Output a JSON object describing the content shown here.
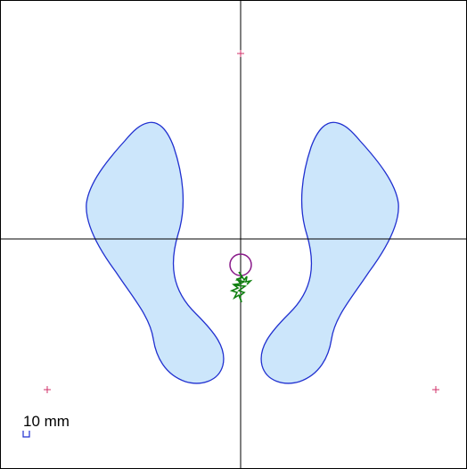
{
  "scale_label": "10 mm"
}
